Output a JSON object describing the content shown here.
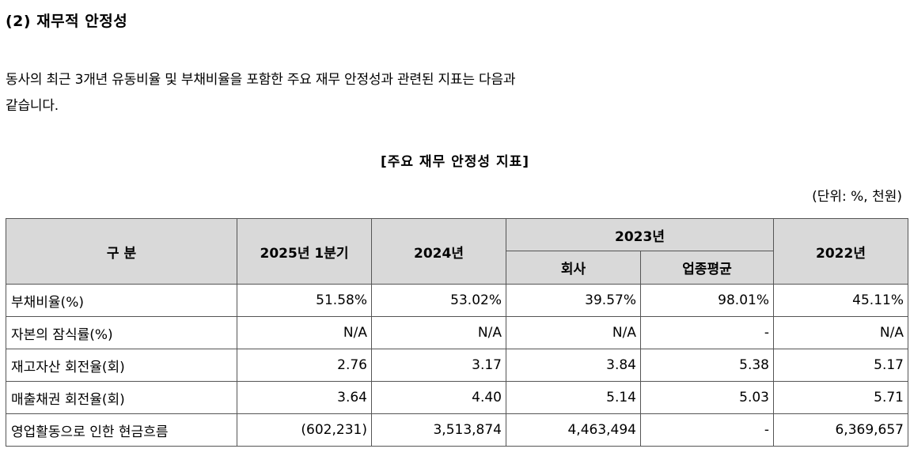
{
  "heading": "(2) 재무적 안정성",
  "paragraph_line1": "동사의 최근 3개년 유동비율 및 부채비율을 포함한 주요 재무 안정성과 관련된 지표는 다음과",
  "paragraph_line2": "같습니다.",
  "table_title": "[주요 재무 안정성 지표]",
  "unit_note": "(단위: %, 천원)",
  "table": {
    "headers": {
      "category": "구 분",
      "q1_2025": "2025년 1분기",
      "y2024": "2024년",
      "y2023": "2023년",
      "y2023_company": "회사",
      "y2023_industry": "업종평균",
      "y2022": "2022년"
    },
    "rows": [
      {
        "label": "부채비율(%)",
        "q1_2025": "51.58%",
        "y2024": "53.02%",
        "y2023_company": "39.57%",
        "y2023_industry": "98.01%",
        "y2022": "45.11%"
      },
      {
        "label": "자본의 잠식률(%)",
        "q1_2025": "N/A",
        "y2024": "N/A",
        "y2023_company": "N/A",
        "y2023_industry": "-",
        "y2022": "N/A"
      },
      {
        "label": "재고자산 회전율(회)",
        "q1_2025": "2.76",
        "y2024": "3.17",
        "y2023_company": "3.84",
        "y2023_industry": "5.38",
        "y2022": "5.17"
      },
      {
        "label": "매출채권 회전율(회)",
        "q1_2025": "3.64",
        "y2024": "4.40",
        "y2023_company": "5.14",
        "y2023_industry": "5.03",
        "y2022": "5.71"
      },
      {
        "label": "영업활동으로 인한 현금흐름",
        "q1_2025": "(602,231)",
        "y2024": "3,513,874",
        "y2023_company": "4,463,494",
        "y2023_industry": "-",
        "y2022": "6,369,657"
      }
    ]
  }
}
